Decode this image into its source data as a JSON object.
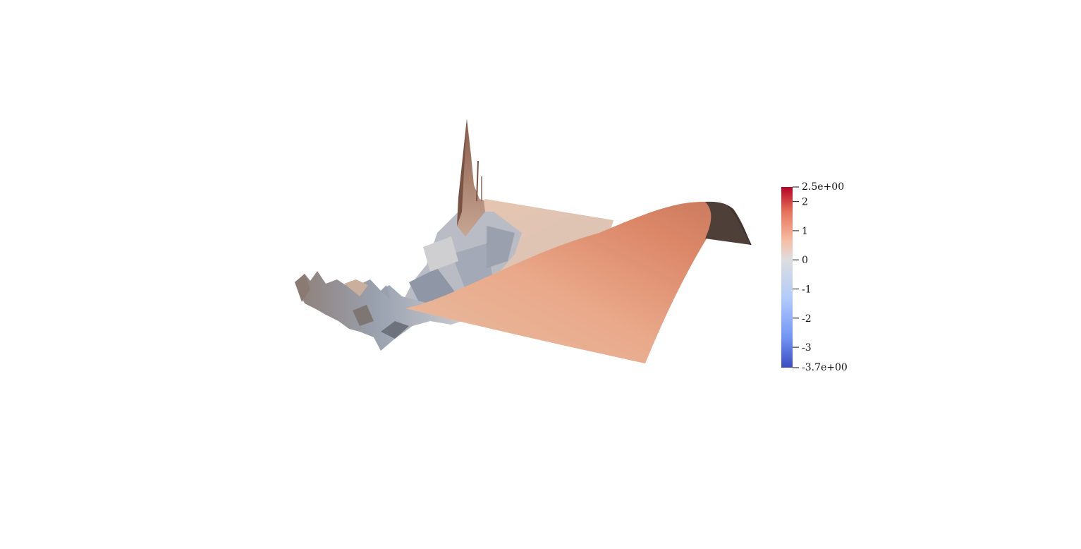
{
  "colorbar": {
    "max_label": "2.5e+00",
    "min_label": "-3.7e+00",
    "range": [
      -3.7,
      2.5
    ],
    "ticks": [
      {
        "value": 2,
        "label": "2"
      },
      {
        "value": 1,
        "label": "1"
      },
      {
        "value": 0,
        "label": "0"
      },
      {
        "value": -1,
        "label": "-1"
      },
      {
        "value": -2,
        "label": "-2"
      },
      {
        "value": -3,
        "label": "-3"
      }
    ],
    "colormap": [
      "#3b4cc0",
      "#7396f5",
      "#b0cbfc",
      "#dddddd",
      "#f6bfa6",
      "#e7745b",
      "#b40426"
    ]
  }
}
